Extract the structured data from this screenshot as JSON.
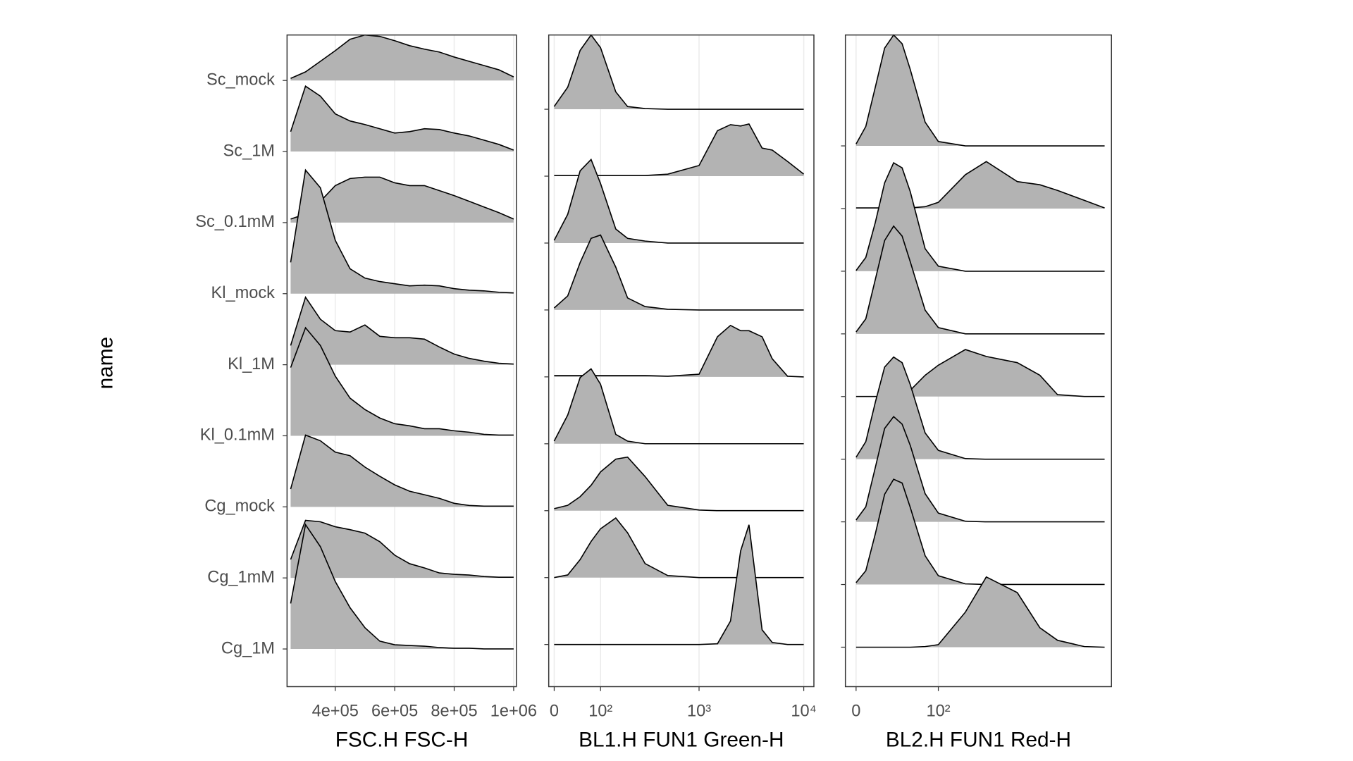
{
  "chart_data": [
    {
      "type": "ridgeline",
      "y_label": "name",
      "x_label": "FSC.H FSC-H",
      "x_scale": "linear",
      "categories": [
        "Sc_mock",
        "Sc_1M",
        "Sc_0.1mM",
        "Kl_mock",
        "Kl_1M",
        "Kl_0.1mM",
        "Cg_mock",
        "Cg_1mM",
        "Cg_1M"
      ],
      "fill": "#b3b3b3",
      "grid": true,
      "xlim": [
        238000,
        1009000
      ],
      "xticks": [
        {
          "value": 400000,
          "label": "4e+05"
        },
        {
          "value": 600000,
          "label": "6e+05"
        },
        {
          "value": 800000,
          "label": "8e+05"
        },
        {
          "value": 1000000,
          "label": "1e+06"
        }
      ],
      "ylim": [
        0.47,
        9.64
      ],
      "x": [
        250000,
        300000,
        350000,
        400000,
        450000,
        500000,
        550000,
        600000,
        650000,
        700000,
        750000,
        800000,
        850000,
        900000,
        950000,
        1000000
      ],
      "ridges": [
        [
          0.03,
          0.12,
          0.27,
          0.42,
          0.58,
          0.64,
          0.62,
          0.56,
          0.49,
          0.44,
          0.4,
          0.33,
          0.27,
          0.21,
          0.15,
          0.05
        ],
        [
          0.28,
          0.92,
          0.78,
          0.53,
          0.43,
          0.38,
          0.32,
          0.26,
          0.28,
          0.32,
          0.31,
          0.26,
          0.22,
          0.16,
          0.1,
          0.02
        ],
        [
          0.05,
          0.12,
          0.3,
          0.52,
          0.62,
          0.64,
          0.64,
          0.56,
          0.52,
          0.52,
          0.45,
          0.38,
          0.3,
          0.22,
          0.14,
          0.05
        ],
        [
          0.44,
          1.74,
          1.49,
          0.75,
          0.35,
          0.22,
          0.17,
          0.14,
          0.11,
          0.12,
          0.11,
          0.07,
          0.05,
          0.04,
          0.02,
          0.01
        ],
        [
          0.27,
          0.95,
          0.64,
          0.48,
          0.46,
          0.56,
          0.4,
          0.38,
          0.38,
          0.36,
          0.25,
          0.15,
          0.09,
          0.05,
          0.02,
          0.01
        ],
        [
          0.96,
          1.52,
          1.27,
          0.84,
          0.53,
          0.37,
          0.25,
          0.17,
          0.14,
          0.1,
          0.1,
          0.07,
          0.05,
          0.02,
          0.01,
          0.01
        ],
        [
          0.25,
          1.01,
          0.93,
          0.77,
          0.72,
          0.56,
          0.43,
          0.31,
          0.22,
          0.17,
          0.12,
          0.05,
          0.02,
          0.01,
          0.01,
          0.01
        ],
        [
          0.26,
          0.81,
          0.79,
          0.72,
          0.68,
          0.63,
          0.51,
          0.32,
          0.2,
          0.14,
          0.07,
          0.05,
          0.04,
          0.02,
          0.01,
          0.01
        ],
        [
          0.64,
          1.75,
          1.44,
          0.95,
          0.58,
          0.3,
          0.11,
          0.06,
          0.05,
          0.04,
          0.02,
          0.01,
          0.01,
          0,
          0,
          0
        ]
      ]
    },
    {
      "type": "ridgeline",
      "x_label": "BL1.H FUN1 Green-H",
      "x_scale": "asinh",
      "fill": "#b3b3b3",
      "grid": true,
      "xlim": [
        -10,
        12500
      ],
      "xticks": [
        0,
        {
          "value": 100,
          "label": "10²"
        },
        {
          "value": 1000,
          "label": "10³"
        },
        {
          "value": 10000,
          "label": "10⁴"
        }
      ],
      "ylim": [
        0.37,
        10.11
      ],
      "x": [
        0,
        25,
        50,
        75,
        100,
        150,
        200,
        300,
        500,
        1000,
        1500,
        2000,
        2500,
        3000,
        4000,
        5000,
        7000,
        10000
      ],
      "ridges": [
        [
          0.04,
          0.33,
          0.88,
          1.11,
          0.92,
          0.26,
          0.04,
          0.01,
          0,
          0,
          0,
          0,
          0,
          0,
          0,
          0,
          0,
          0
        ],
        [
          0.01,
          0.01,
          0.01,
          0.01,
          0.01,
          0.01,
          0.01,
          0.01,
          0.03,
          0.16,
          0.68,
          0.77,
          0.75,
          0.78,
          0.42,
          0.39,
          0.22,
          0.03
        ],
        [
          0.04,
          0.43,
          1.08,
          1.25,
          0.89,
          0.21,
          0.07,
          0.03,
          0,
          0,
          0,
          0,
          0,
          0,
          0,
          0,
          0,
          0
        ],
        [
          0.03,
          0.21,
          0.71,
          1.07,
          1.12,
          0.64,
          0.18,
          0.05,
          0.01,
          0,
          0,
          0,
          0,
          0,
          0,
          0,
          0,
          0
        ],
        [
          0.02,
          0.02,
          0.02,
          0.02,
          0.02,
          0.02,
          0.02,
          0.02,
          0.01,
          0.04,
          0.6,
          0.77,
          0.69,
          0.69,
          0.6,
          0.27,
          0.01,
          0
        ],
        [
          0.04,
          0.43,
          0.99,
          1.12,
          0.89,
          0.14,
          0.04,
          0,
          0,
          0,
          0,
          0,
          0,
          0,
          0,
          0,
          0,
          0
        ],
        [
          0.03,
          0.08,
          0.21,
          0.38,
          0.58,
          0.77,
          0.8,
          0.51,
          0.08,
          0.01,
          0,
          0,
          0,
          0,
          0,
          0,
          0,
          0
        ],
        [
          0,
          0.04,
          0.27,
          0.54,
          0.73,
          0.89,
          0.67,
          0.21,
          0.03,
          0,
          0,
          0,
          0,
          0,
          0,
          0,
          0,
          0
        ],
        [
          0,
          0,
          0,
          0,
          0,
          0,
          0,
          0,
          0,
          0,
          0.01,
          0.35,
          1.4,
          1.79,
          0.22,
          0.03,
          0,
          0
        ]
      ]
    },
    {
      "type": "ridgeline",
      "x_label": "BL2.H FUN1 Red-H",
      "x_scale": "asinh",
      "fill": "#b3b3b3",
      "grid": true,
      "xlim": [
        -11,
        980
      ],
      "xticks": [
        0,
        {
          "value": 100,
          "label": "10²"
        }
      ],
      "ylim": [
        0.37,
        10.77
      ],
      "x": [
        0,
        10,
        20,
        30,
        40,
        50,
        60,
        80,
        100,
        150,
        200,
        300,
        400,
        500,
        700,
        900
      ],
      "ridges": [
        [
          0.03,
          0.31,
          0.94,
          1.56,
          1.77,
          1.63,
          1.22,
          0.38,
          0.07,
          0,
          0,
          0,
          0,
          0,
          0,
          0
        ],
        [
          0.01,
          0.01,
          0.01,
          0.01,
          0.01,
          0.01,
          0.01,
          0.03,
          0.1,
          0.54,
          0.75,
          0.43,
          0.38,
          0.29,
          0.13,
          0.01
        ],
        [
          0.01,
          0.22,
          0.78,
          1.41,
          1.73,
          1.65,
          1.27,
          0.36,
          0.08,
          0,
          0,
          0,
          0,
          0,
          0,
          0
        ],
        [
          0.03,
          0.24,
          0.87,
          1.49,
          1.72,
          1.56,
          1.15,
          0.38,
          0.1,
          0,
          0,
          0,
          0,
          0,
          0,
          0
        ],
        [
          0,
          0,
          0,
          0,
          0,
          0,
          0.1,
          0.34,
          0.5,
          0.75,
          0.64,
          0.54,
          0.34,
          0.03,
          0,
          0
        ],
        [
          0.03,
          0.28,
          0.91,
          1.47,
          1.63,
          1.54,
          1.19,
          0.42,
          0.14,
          0.01,
          0,
          0,
          0,
          0,
          0,
          0
        ],
        [
          0.03,
          0.24,
          0.87,
          1.49,
          1.68,
          1.56,
          1.22,
          0.45,
          0.14,
          0.01,
          0,
          0,
          0,
          0,
          0,
          0
        ],
        [
          0.03,
          0.22,
          0.81,
          1.44,
          1.68,
          1.62,
          1.23,
          0.46,
          0.14,
          0.01,
          0,
          0,
          0,
          0,
          0,
          0
        ],
        [
          0,
          0,
          0,
          0,
          0,
          0,
          0,
          0.01,
          0.04,
          0.56,
          1.12,
          0.87,
          0.31,
          0.11,
          0.01,
          0
        ]
      ]
    }
  ]
}
